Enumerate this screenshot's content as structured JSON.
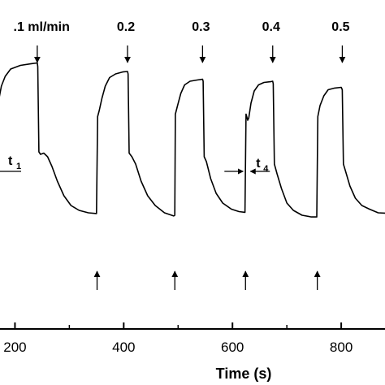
{
  "chart_data": {
    "type": "line",
    "title": "",
    "xlabel": "Time (s)",
    "ylabel": "",
    "xlim": [
      165,
      885
    ],
    "ylim": [
      0,
      1
    ],
    "x_ticks": [
      {
        "value": 200,
        "label": "200"
      },
      {
        "value": 400,
        "label": "400"
      },
      {
        "value": 600,
        "label": "600"
      },
      {
        "value": 800,
        "label": "800"
      }
    ],
    "series": [
      {
        "color": "#000000",
        "points": [
          [
            165,
            0.6
          ],
          [
            167,
            0.62
          ],
          [
            170,
            0.72
          ],
          [
            175,
            0.78
          ],
          [
            182,
            0.82
          ],
          [
            192,
            0.85
          ],
          [
            210,
            0.865
          ],
          [
            230,
            0.872
          ],
          [
            241,
            0.875
          ],
          [
            242,
            0.86
          ],
          [
            244,
            0.51
          ],
          [
            247,
            0.5
          ],
          [
            253,
            0.505
          ],
          [
            260,
            0.49
          ],
          [
            268,
            0.45
          ],
          [
            278,
            0.39
          ],
          [
            290,
            0.33
          ],
          [
            303,
            0.29
          ],
          [
            318,
            0.27
          ],
          [
            335,
            0.26
          ],
          [
            350,
            0.257
          ],
          [
            352,
            0.655
          ],
          [
            355,
            0.68
          ],
          [
            360,
            0.73
          ],
          [
            366,
            0.78
          ],
          [
            374,
            0.815
          ],
          [
            385,
            0.83
          ],
          [
            398,
            0.838
          ],
          [
            407,
            0.84
          ],
          [
            408,
            0.83
          ],
          [
            410,
            0.505
          ],
          [
            415,
            0.49
          ],
          [
            422,
            0.46
          ],
          [
            432,
            0.39
          ],
          [
            444,
            0.33
          ],
          [
            458,
            0.29
          ],
          [
            475,
            0.26
          ],
          [
            492,
            0.247
          ],
          [
            494,
            0.25
          ],
          [
            495,
            0.665
          ],
          [
            499,
            0.7
          ],
          [
            505,
            0.75
          ],
          [
            512,
            0.785
          ],
          [
            522,
            0.8
          ],
          [
            535,
            0.805
          ],
          [
            545,
            0.808
          ],
          [
            546,
            0.8
          ],
          [
            548,
            0.49
          ],
          [
            552,
            0.47
          ],
          [
            560,
            0.4
          ],
          [
            570,
            0.34
          ],
          [
            582,
            0.3
          ],
          [
            598,
            0.275
          ],
          [
            612,
            0.265
          ],
          [
            623,
            0.262
          ],
          [
            625,
            0.665
          ],
          [
            628,
            0.64
          ],
          [
            630,
            0.65
          ],
          [
            634,
            0.71
          ],
          [
            640,
            0.76
          ],
          [
            648,
            0.785
          ],
          [
            658,
            0.795
          ],
          [
            670,
            0.798
          ],
          [
            674,
            0.8
          ],
          [
            675,
            0.79
          ],
          [
            677,
            0.46
          ],
          [
            682,
            0.42
          ],
          [
            690,
            0.36
          ],
          [
            700,
            0.3
          ],
          [
            712,
            0.27
          ],
          [
            728,
            0.25
          ],
          [
            745,
            0.243
          ],
          [
            755,
            0.243
          ],
          [
            757,
            0.655
          ],
          [
            761,
            0.7
          ],
          [
            768,
            0.74
          ],
          [
            776,
            0.765
          ],
          [
            788,
            0.772
          ],
          [
            800,
            0.775
          ],
          [
            802,
            0.765
          ],
          [
            804,
            0.46
          ],
          [
            808,
            0.43
          ],
          [
            816,
            0.37
          ],
          [
            826,
            0.32
          ],
          [
            838,
            0.29
          ],
          [
            852,
            0.275
          ],
          [
            868,
            0.26
          ],
          [
            885,
            0.258
          ]
        ]
      }
    ],
    "annotations": {
      "flow_labels": [
        {
          "text": ".1 ml/min",
          "x": 241
        },
        {
          "text": "0.2",
          "x": 407
        },
        {
          "text": "0.3",
          "x": 545
        },
        {
          "text": "0.4",
          "x": 674
        },
        {
          "text": "0.5",
          "x": 802
        }
      ],
      "down_arrows_x": [
        241,
        407,
        545,
        674,
        802
      ],
      "up_arrows_x": [
        351,
        494,
        624,
        756
      ],
      "t1": {
        "text": "t",
        "sub": "1",
        "x": 175
      },
      "t4": {
        "text": "t",
        "sub": "4",
        "x": 624
      }
    }
  }
}
